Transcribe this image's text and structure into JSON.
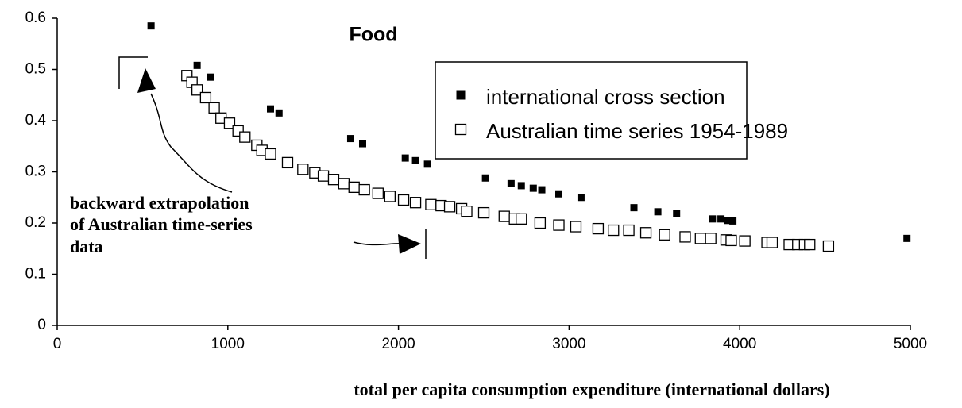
{
  "chart_data": {
    "type": "scatter",
    "title": "Food",
    "xlabel": "total per capita consumption expenditure (international dollars)",
    "annotation": [
      "backward extrapolation",
      "of Australian time-series",
      "data"
    ],
    "xlim": [
      0,
      5000
    ],
    "xticks": [
      0,
      1000,
      2000,
      3000,
      4000,
      5000
    ],
    "ylim": [
      0,
      0.6
    ],
    "yticks": [
      0,
      0.1,
      0.2,
      0.3,
      0.4,
      0.5,
      0.6
    ],
    "series": [
      {
        "name": "international cross section",
        "color": "#000000",
        "marker": "filled",
        "x": [
          550,
          820,
          900,
          1250,
          1300,
          1720,
          1790,
          2040,
          2100,
          2170,
          2510,
          2660,
          2720,
          2790,
          2840,
          2940,
          3070,
          3380,
          3520,
          3630,
          3840,
          3890,
          3930,
          3960,
          4980
        ],
        "values": [
          0.585,
          0.508,
          0.485,
          0.423,
          0.415,
          0.365,
          0.355,
          0.327,
          0.322,
          0.315,
          0.288,
          0.277,
          0.273,
          0.268,
          0.265,
          0.257,
          0.25,
          0.23,
          0.222,
          0.218,
          0.208,
          0.208,
          0.205,
          0.204,
          0.17
        ]
      },
      {
        "name": "Australian time series 1954-1989",
        "color": "#000000",
        "marker": "hollow",
        "x": [
          760,
          790,
          820,
          870,
          920,
          960,
          1010,
          1060,
          1100,
          1170,
          1200,
          1250,
          1350,
          1440,
          1510,
          1560,
          1620,
          1680,
          1740,
          1800,
          1880,
          1950,
          2030,
          2100,
          2190,
          2250,
          2300,
          2370,
          2400,
          2500,
          2620,
          2680,
          2720,
          2830,
          2940,
          3040,
          3170,
          3260,
          3350,
          3450,
          3560,
          3680,
          3770,
          3830,
          3920,
          3950,
          4030,
          4160,
          4190,
          4290,
          4340,
          4380,
          4410,
          4520
        ],
        "values": [
          0.488,
          0.475,
          0.46,
          0.445,
          0.425,
          0.405,
          0.395,
          0.38,
          0.368,
          0.352,
          0.342,
          0.335,
          0.318,
          0.305,
          0.298,
          0.292,
          0.285,
          0.277,
          0.27,
          0.265,
          0.258,
          0.252,
          0.245,
          0.24,
          0.236,
          0.234,
          0.232,
          0.228,
          0.223,
          0.22,
          0.213,
          0.208,
          0.208,
          0.2,
          0.196,
          0.193,
          0.189,
          0.186,
          0.186,
          0.181,
          0.177,
          0.173,
          0.17,
          0.17,
          0.167,
          0.166,
          0.165,
          0.162,
          0.162,
          0.158,
          0.158,
          0.158,
          0.158,
          0.155
        ]
      }
    ]
  }
}
